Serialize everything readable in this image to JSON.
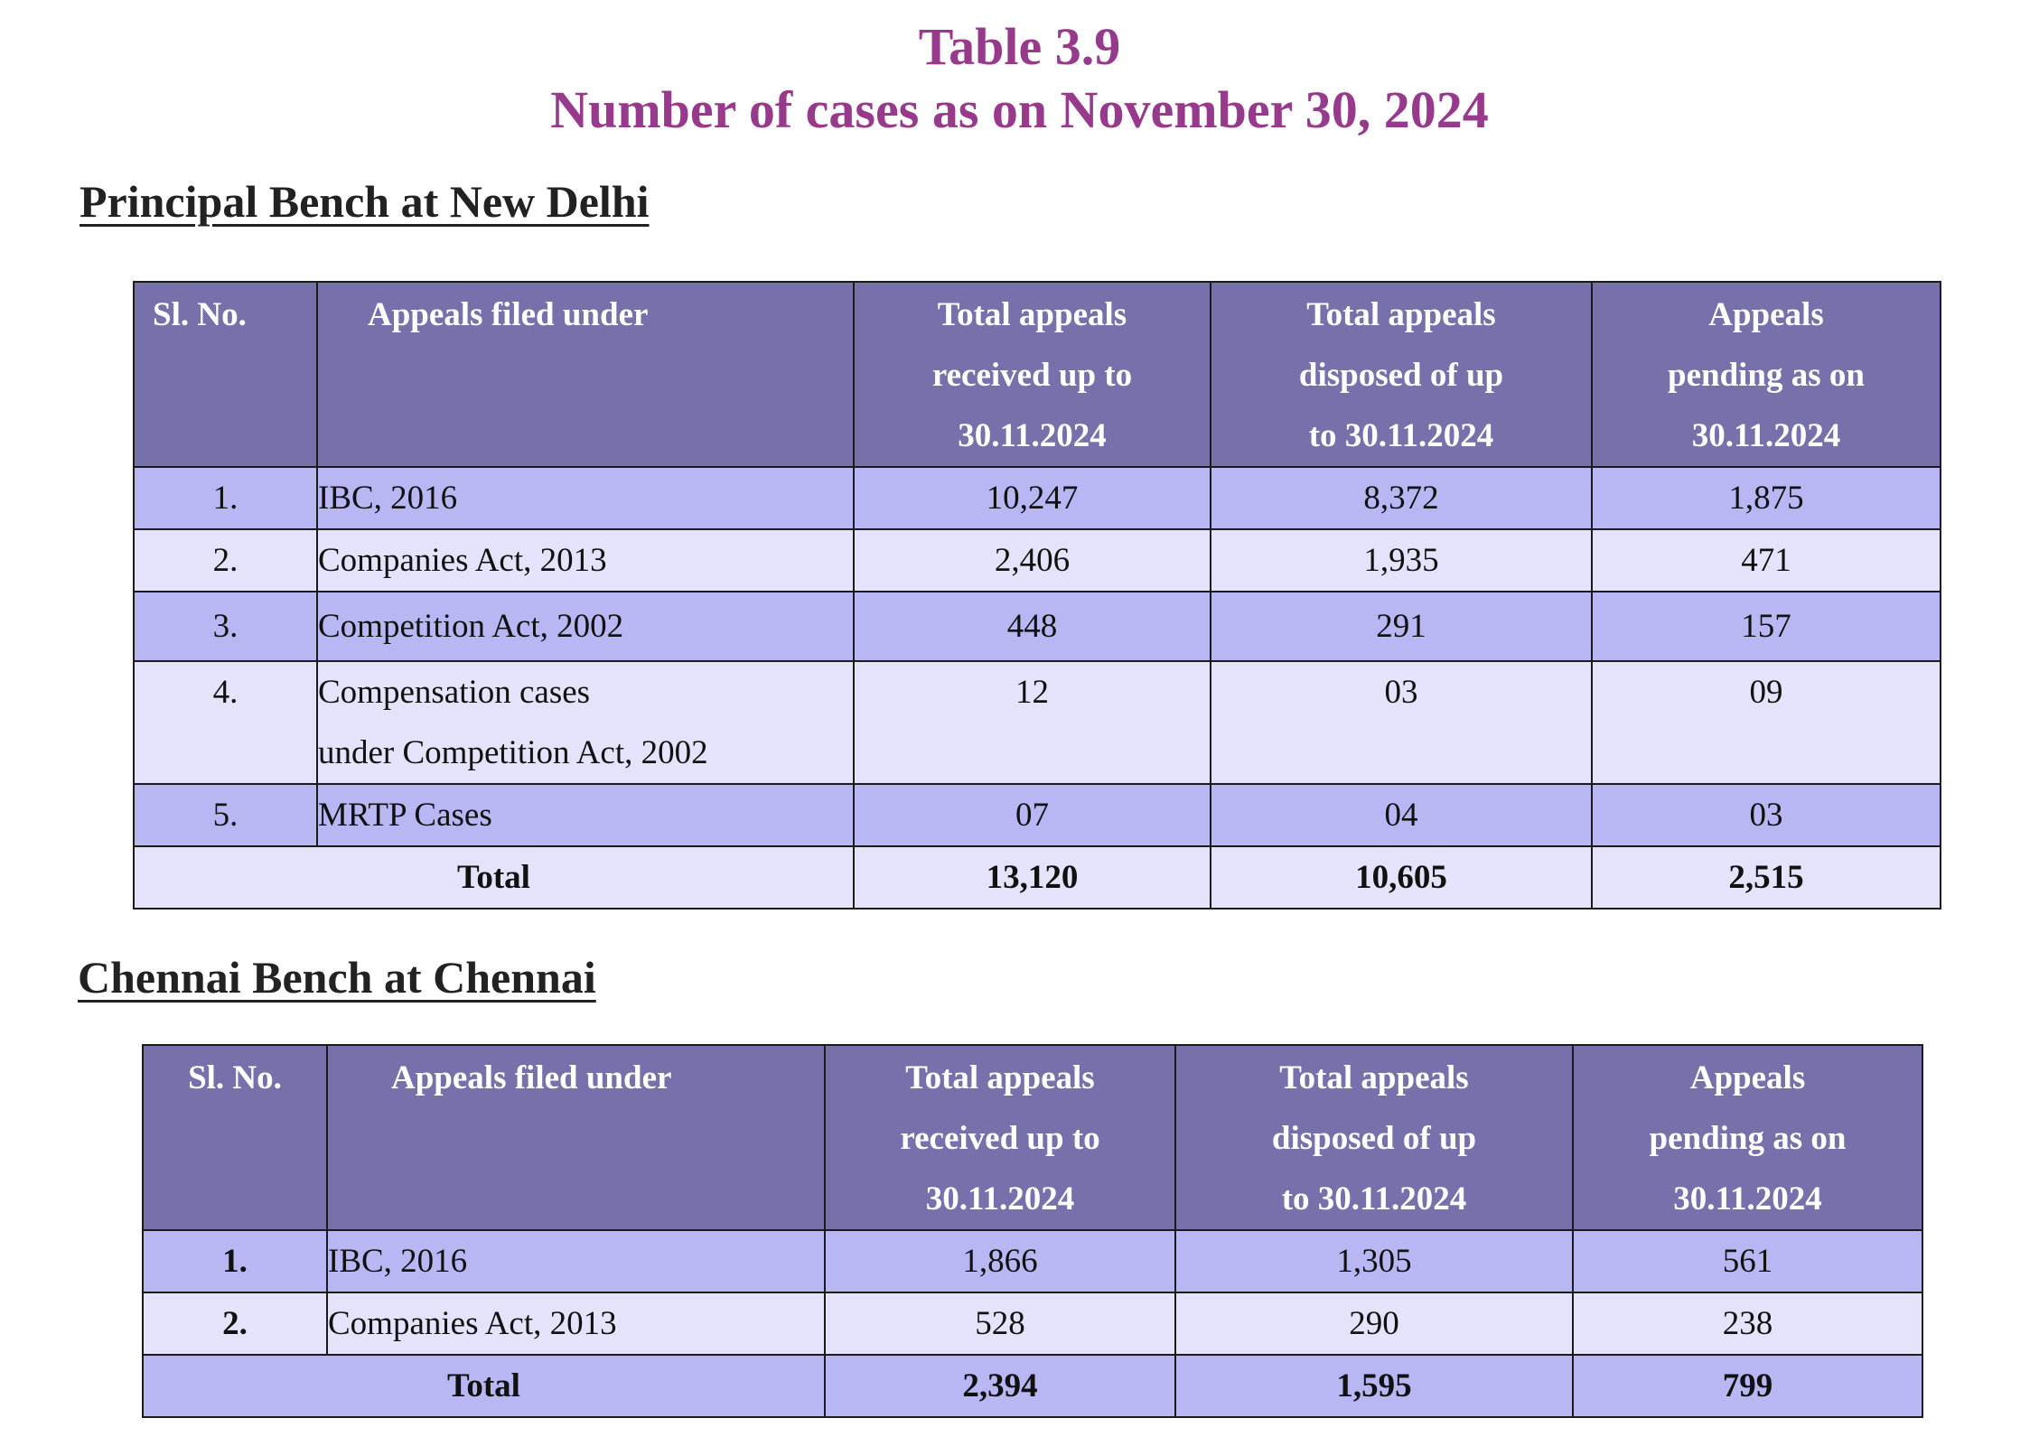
{
  "title": {
    "line1": "Table 3.9",
    "line2": "Number of cases as on November 30, 2024"
  },
  "delhi": {
    "heading": "Principal Bench at New Delhi",
    "headers": {
      "sl": "Sl. No.",
      "appeals": "Appeals filed under",
      "received": [
        "Total appeals",
        "received up to",
        "30.11.2024"
      ],
      "disposed": [
        "Total appeals",
        "disposed of up",
        "to 30.11.2024"
      ],
      "pending": [
        "Appeals",
        "pending as on",
        "30.11.2024"
      ]
    },
    "rows": [
      {
        "sl": "1.",
        "act": "IBC, 2016",
        "received": "10,247",
        "disposed": "8,372",
        "pending": "1,875"
      },
      {
        "sl": "2.",
        "act": "Companies Act, 2013",
        "received": "2,406",
        "disposed": "1,935",
        "pending": "471"
      },
      {
        "sl": "3.",
        "act": "Competition Act, 2002",
        "received": "448",
        "disposed": "291",
        "pending": "157"
      },
      {
        "sl": "4.",
        "act_line1": "Compensation cases",
        "act_line2": "under Competition Act, 2002",
        "received": "12",
        "disposed": "03",
        "pending": "09"
      },
      {
        "sl": "5.",
        "act": "MRTP Cases",
        "received": "07",
        "disposed": "04",
        "pending": "03"
      }
    ],
    "total": {
      "label": "Total",
      "received": "13,120",
      "disposed": "10,605",
      "pending": "2,515"
    }
  },
  "chennai": {
    "heading": "Chennai Bench at Chennai",
    "headers": {
      "sl": "Sl. No.",
      "appeals": "Appeals filed under",
      "received": [
        "Total appeals",
        "received up to",
        "30.11.2024"
      ],
      "disposed": [
        "Total appeals",
        "disposed of up",
        "to 30.11.2024"
      ],
      "pending": [
        "Appeals",
        "pending as on",
        "30.11.2024"
      ]
    },
    "rows": [
      {
        "sl": "1.",
        "act": "IBC, 2016",
        "received": "1,866",
        "disposed": "1,305",
        "pending": "561"
      },
      {
        "sl": "2.",
        "act": "Companies Act, 2013",
        "received": "528",
        "disposed": "290",
        "pending": "238"
      }
    ],
    "total": {
      "label": "Total",
      "received": "2,394",
      "disposed": "1,595",
      "pending": "799"
    }
  },
  "colors": {
    "title": "#983a8c",
    "header_bg": "#7670ab",
    "row_dark": "#b9b6f4",
    "row_light": "#e5e3fb"
  }
}
